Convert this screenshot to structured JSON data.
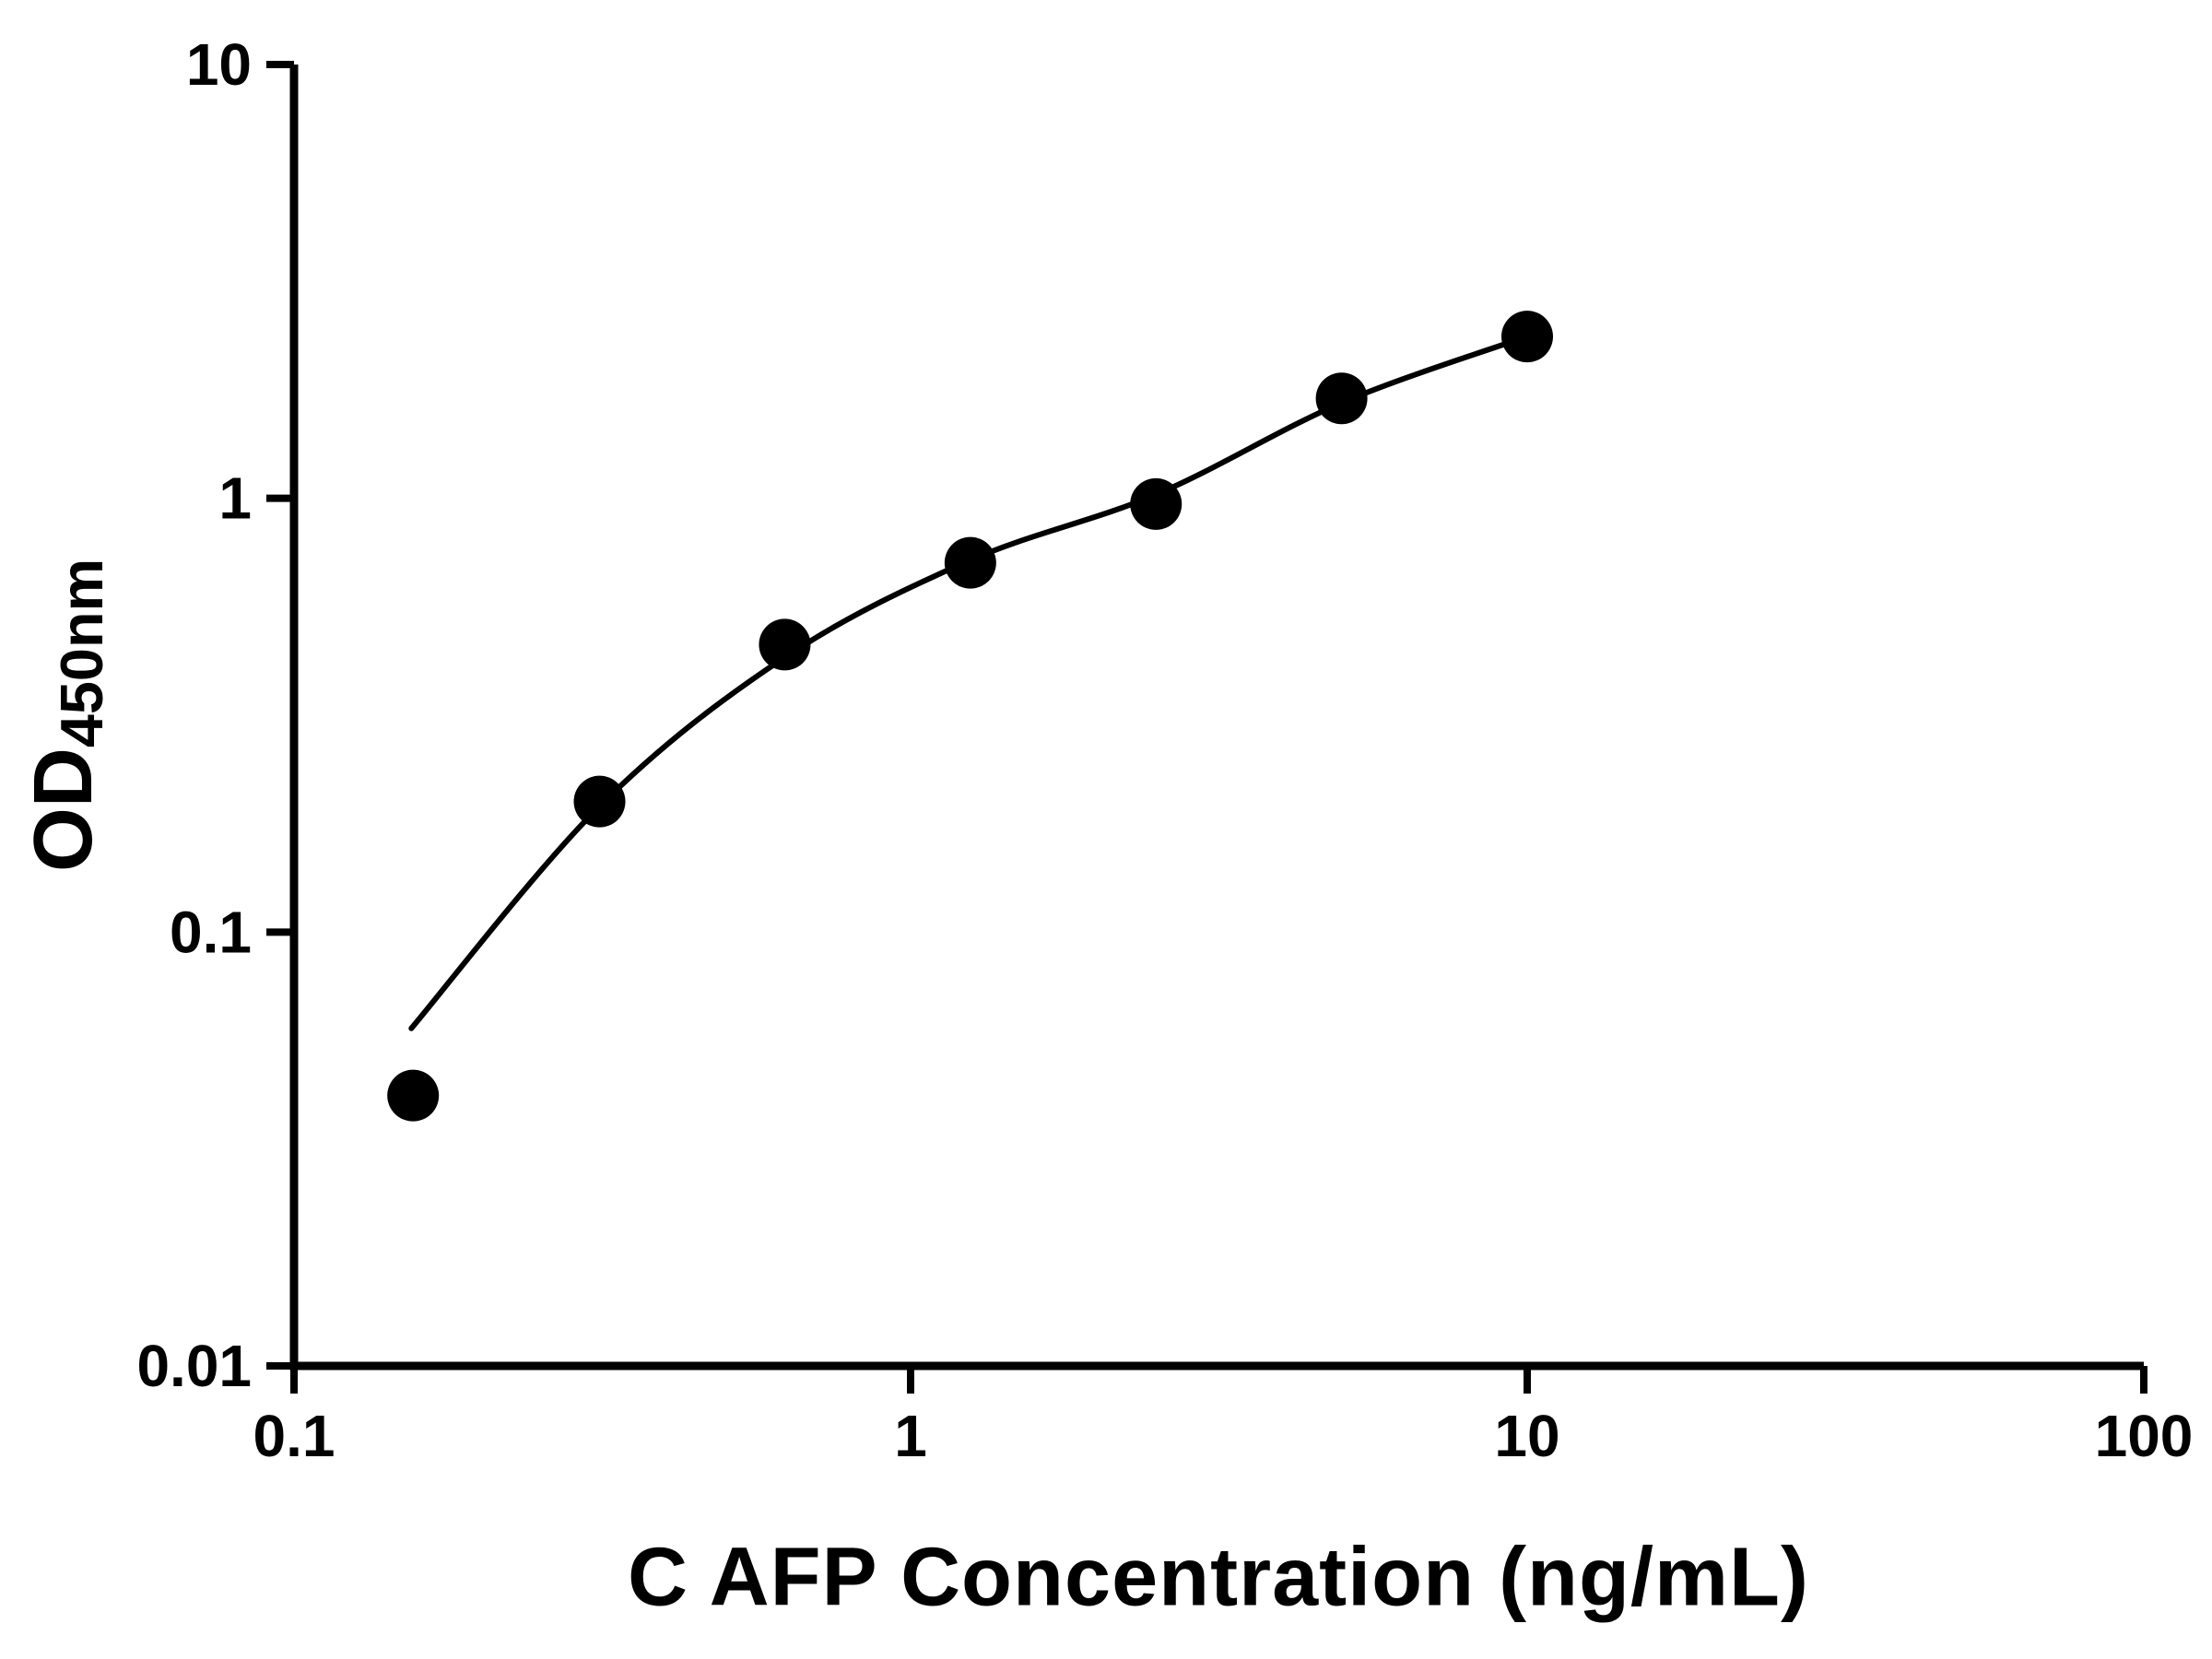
{
  "page": {
    "background": "#ffffff",
    "ink": "#000000"
  },
  "chart_data": {
    "type": "scatter",
    "title": "",
    "xlabel": "C AFP Concentration (ng/mL)",
    "ylabel": "OD450nm",
    "ylabel_main": "OD",
    "ylabel_sub": "450nm",
    "x_scale": "log",
    "y_scale": "log",
    "xlim": [
      0.1,
      100
    ],
    "ylim": [
      0.01,
      10
    ],
    "grid": false,
    "legend": "none",
    "x_tick_values": [
      0.1,
      1,
      10,
      100
    ],
    "x_tick_labels": [
      "0.1",
      "1",
      "10",
      "100"
    ],
    "y_tick_values": [
      0.01,
      0.1,
      1,
      10
    ],
    "y_tick_labels": [
      "0.01",
      "0.1",
      "1",
      "10"
    ],
    "x": [
      0.156,
      0.313,
      0.625,
      1.25,
      2.5,
      5,
      10
    ],
    "y": [
      0.042,
      0.2,
      0.46,
      0.71,
      0.97,
      1.7,
      2.36
    ],
    "fit_curve_points": [
      [
        0.155,
        0.06
      ],
      [
        0.313,
        0.195
      ],
      [
        0.625,
        0.43
      ],
      [
        1.25,
        0.72
      ],
      [
        2.5,
        1.02
      ],
      [
        5,
        1.66
      ],
      [
        10,
        2.36
      ]
    ],
    "marker": {
      "shape": "circle",
      "color": "#000000",
      "radius_px": 28
    },
    "line_color": "#000000"
  }
}
